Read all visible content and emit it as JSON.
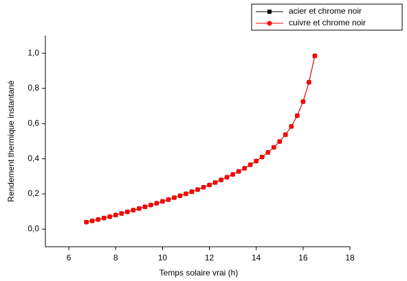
{
  "chart_data": {
    "type": "line",
    "x_label": "Temps solaire vrai (h)",
    "y_label": "Rendement thermique instantané",
    "x": [
      6.75,
      7,
      7.25,
      7.5,
      7.75,
      8,
      8.25,
      8.5,
      8.75,
      9,
      9.25,
      9.5,
      9.75,
      10,
      10.25,
      10.5,
      10.75,
      11,
      11.25,
      11.5,
      11.75,
      12,
      12.25,
      12.5,
      12.75,
      13,
      13.25,
      13.5,
      13.75,
      14,
      14.25,
      14.5,
      14.75,
      15,
      15.25,
      15.5,
      15.75,
      16,
      16.25,
      16.5
    ],
    "series": [
      {
        "name": "acier et chrome noir",
        "color": "#000000",
        "marker": "square",
        "values": [
          0.04,
          0.047,
          0.055,
          0.063,
          0.071,
          0.08,
          0.089,
          0.098,
          0.108,
          0.117,
          0.127,
          0.137,
          0.147,
          0.158,
          0.168,
          0.179,
          0.19,
          0.201,
          0.213,
          0.225,
          0.238,
          0.251,
          0.265,
          0.28,
          0.295,
          0.311,
          0.328,
          0.346,
          0.366,
          0.387,
          0.41,
          0.436,
          0.465,
          0.498,
          0.537,
          0.584,
          0.645,
          0.725,
          0.835,
          0.985
        ]
      },
      {
        "name": "cuivre et chrome noir",
        "color": "#ff0000",
        "marker": "circle",
        "values": [
          0.04,
          0.047,
          0.055,
          0.063,
          0.071,
          0.08,
          0.089,
          0.098,
          0.108,
          0.117,
          0.127,
          0.137,
          0.147,
          0.158,
          0.168,
          0.179,
          0.19,
          0.201,
          0.213,
          0.225,
          0.238,
          0.251,
          0.265,
          0.28,
          0.295,
          0.311,
          0.328,
          0.346,
          0.366,
          0.387,
          0.41,
          0.436,
          0.465,
          0.498,
          0.537,
          0.584,
          0.645,
          0.725,
          0.835,
          0.985
        ]
      }
    ],
    "xlim": [
      5,
      18
    ],
    "xticks": [
      6,
      8,
      10,
      12,
      14,
      16,
      18
    ],
    "ylim": [
      -0.1,
      1.1
    ],
    "yticks": [
      {
        "value": 0,
        "label": "0,0"
      },
      {
        "value": 0.2,
        "label": "0,2"
      },
      {
        "value": 0.4,
        "label": "0,4"
      },
      {
        "value": 0.6,
        "label": "0,6"
      },
      {
        "value": 0.8,
        "label": "0,8"
      },
      {
        "value": 1.0,
        "label": "1,0"
      }
    ],
    "legend": "top-right",
    "grid": false
  }
}
